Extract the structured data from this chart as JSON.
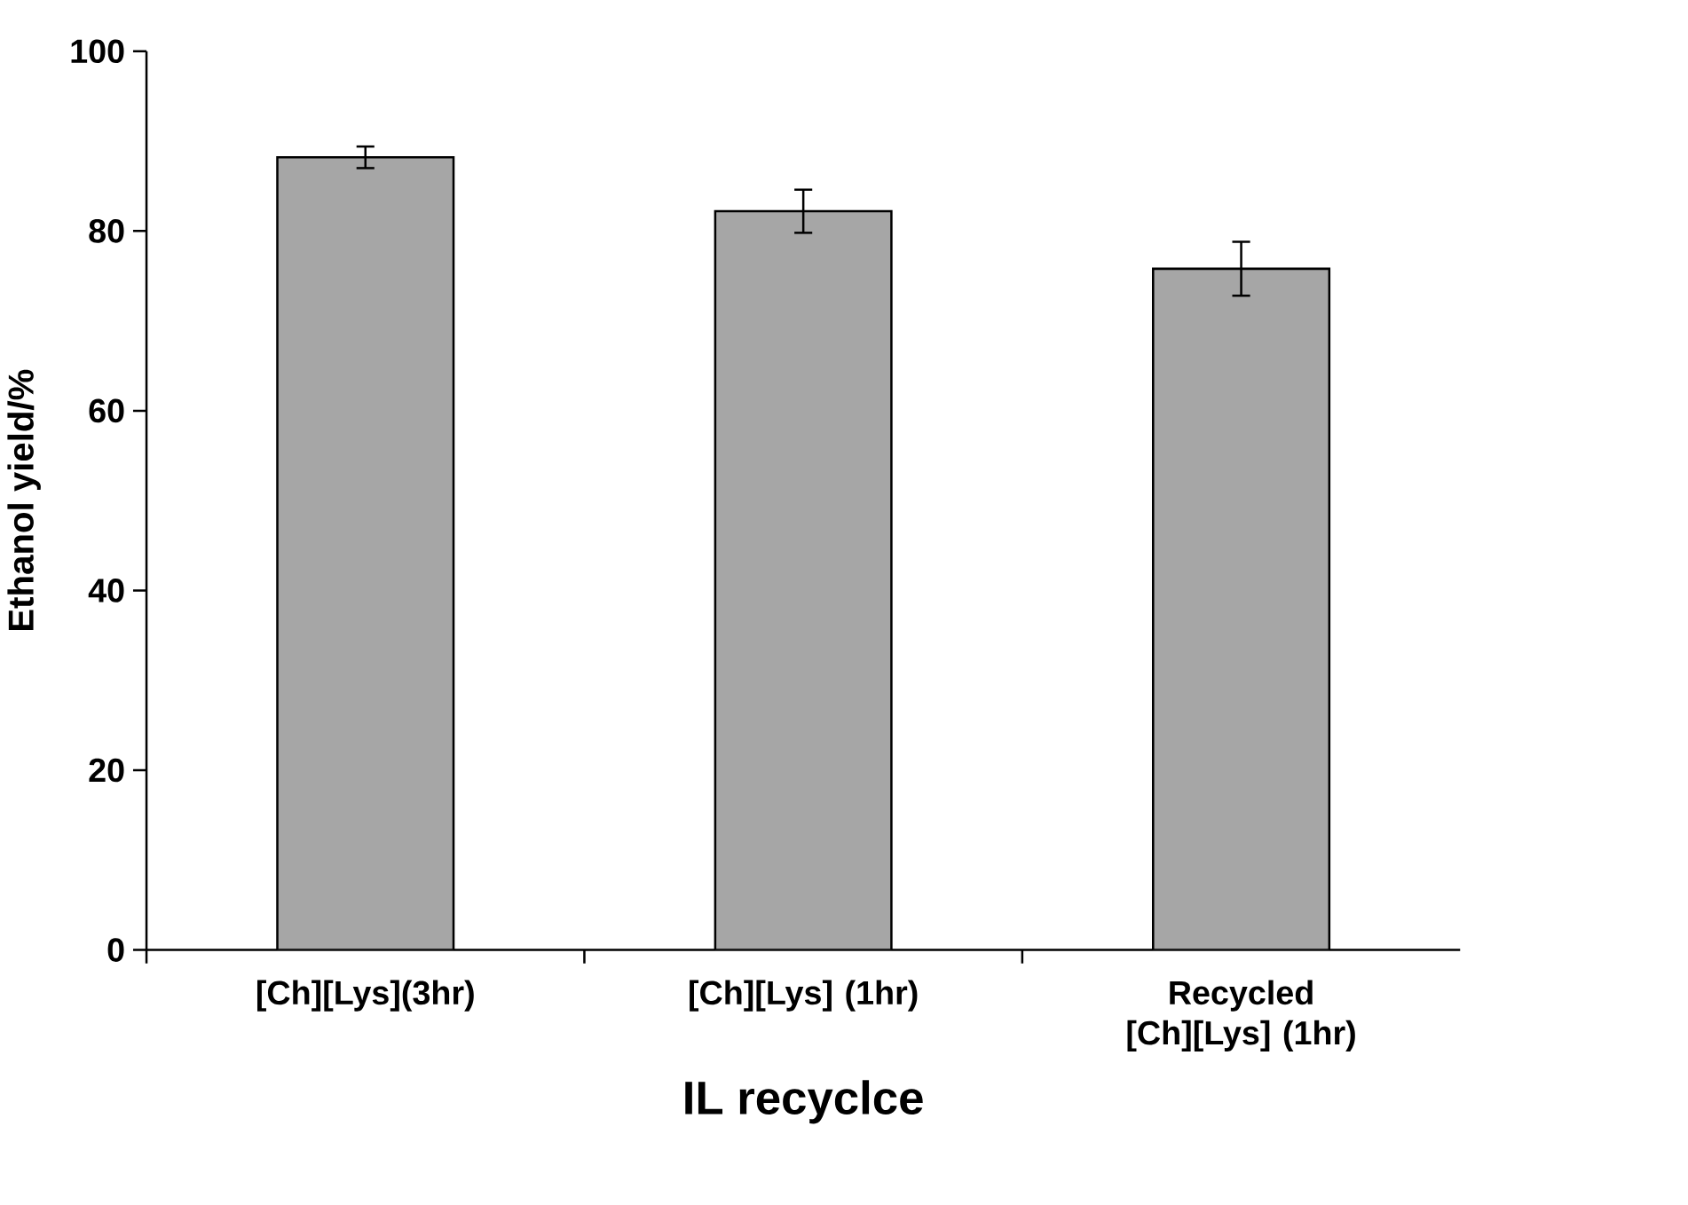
{
  "chart_data": {
    "type": "bar",
    "categories": [
      "[Ch][Lys](3hr)",
      "[Ch][Lys] (1hr)",
      "Recycled [Ch][Lys] (1hr)"
    ],
    "values": [
      88.2,
      82.2,
      75.8
    ],
    "errors": [
      1.2,
      2.4,
      3.0
    ],
    "color": "#a6a6a6",
    "xlabel": "IL recyclce",
    "ylabel": "Ethanol yield/%",
    "ylim": [
      0,
      100
    ],
    "yticks": [
      0,
      20,
      40,
      60,
      80,
      100
    ],
    "grid": false
  }
}
